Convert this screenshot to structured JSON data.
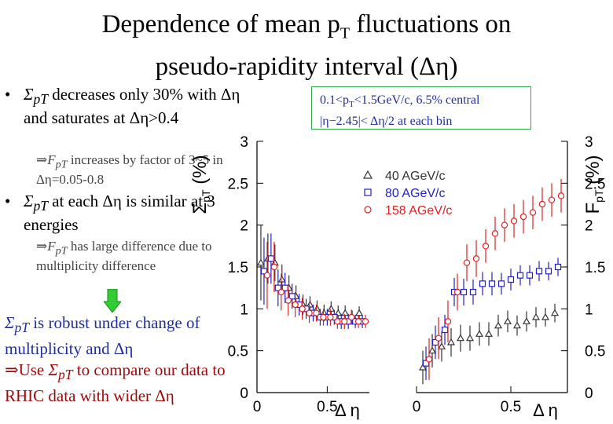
{
  "title": {
    "line1_prefix": "Dependence of mean p",
    "line1_sub": "T",
    "line1_suffix": " fluctuations on",
    "line2": "pseudo-rapidity interval (Δη)"
  },
  "bullets": {
    "dot": "•",
    "b1_sigma": "Σ",
    "b1_sub": "pT",
    "b1_text": " decreases only 30% with Δη and saturates at Δη>0.4",
    "sub1_prefix": "⇒",
    "sub1_F": "F",
    "sub1_sub": "pT",
    "sub1_text": " increases by factor of 3~5 in Δη=0.05-0.8",
    "b2_sigma": "Σ",
    "b2_sub": "pT",
    "b2_text": " at each Δη is similar at 3 energies",
    "sub2_prefix": "⇒",
    "sub2_F": "F",
    "sub2_sub": "pT",
    "sub2_text": " has large difference due to multiplicity difference"
  },
  "footer": {
    "sigma": "Σ",
    "sigma_sub": "pT",
    "line1": " is robust under change of multiplicity and Δη",
    "use_prefix": "⇒Use ",
    "use_sigma": "Σ",
    "use_sub": "pT",
    "use_text": " to compare our data to RHIC data with wider Δη"
  },
  "infobox": {
    "line1_prefix": "0.1<p",
    "line1_sub": "T",
    "line1_suffix": "<1.5GeV/c, 6.5% central",
    "line2": "|η−2.45|< Δη/2 at each bin"
  },
  "colors": {
    "series_40": "#333333",
    "series_80": "#2222cc",
    "series_158": "#dd2222",
    "infobox_border": "#2ea84a",
    "arrow": "#33cc33"
  },
  "chart_data": [
    {
      "type": "scatter",
      "panel": "left",
      "ylabel": "Σ",
      "ylabel_sub": "pT",
      "ylabel_unit": "(%)",
      "xlabel": "Δ η",
      "xlim": [
        0,
        0.8
      ],
      "ylim": [
        0,
        3
      ],
      "xticks": [
        "0",
        "0.5"
      ],
      "yticks": [
        "0",
        "0.5",
        "1",
        "1.5",
        "2",
        "2.5",
        "3"
      ],
      "legend_position": "top-right",
      "series": [
        {
          "name": "40 AGeV/c",
          "marker": "triangle",
          "x": [
            0.05,
            0.1,
            0.15,
            0.2,
            0.25,
            0.3,
            0.35,
            0.4,
            0.45,
            0.5,
            0.55,
            0.6,
            0.65,
            0.7,
            0.75
          ],
          "y": [
            1.55,
            1.6,
            1.55,
            1.35,
            1.25,
            1.15,
            1.05,
            1.05,
            1.0,
            0.95,
            1.0,
            0.95,
            0.95,
            0.9,
            0.95
          ],
          "err": [
            0.45,
            0.3,
            0.22,
            0.18,
            0.15,
            0.13,
            0.12,
            0.1,
            0.1,
            0.1,
            0.09,
            0.09,
            0.09,
            0.08,
            0.08
          ]
        },
        {
          "name": "80 AGeV/c",
          "marker": "square",
          "x": [
            0.05,
            0.1,
            0.15,
            0.2,
            0.25,
            0.3,
            0.35,
            0.4,
            0.45,
            0.5,
            0.55,
            0.6,
            0.65,
            0.7,
            0.75
          ],
          "y": [
            1.45,
            1.6,
            1.25,
            1.25,
            1.15,
            1.05,
            1.0,
            0.95,
            0.9,
            0.9,
            0.9,
            0.85,
            0.85,
            0.85,
            0.85
          ],
          "err": [
            0.4,
            0.3,
            0.22,
            0.18,
            0.15,
            0.13,
            0.12,
            0.1,
            0.1,
            0.1,
            0.09,
            0.09,
            0.09,
            0.08,
            0.08
          ]
        },
        {
          "name": "158 AGeV/c",
          "marker": "circle",
          "x": [
            0.05,
            0.1,
            0.15,
            0.2,
            0.25,
            0.3,
            0.35,
            0.4,
            0.45,
            0.5,
            0.55,
            0.6,
            0.65,
            0.7,
            0.75
          ],
          "y": [
            1.4,
            1.5,
            1.2,
            1.1,
            1.05,
            1.0,
            0.95,
            0.95,
            0.9,
            0.9,
            0.85,
            0.85,
            0.9,
            0.85,
            0.85
          ],
          "err": [
            0.4,
            0.3,
            0.22,
            0.18,
            0.15,
            0.13,
            0.12,
            0.1,
            0.1,
            0.1,
            0.09,
            0.09,
            0.09,
            0.08,
            0.08
          ]
        }
      ]
    },
    {
      "type": "scatter",
      "panel": "right",
      "ylabel": "F",
      "ylabel_sub": "pT",
      "ylabel_unit": "(%)",
      "xlabel": "Δ η",
      "xlim": [
        0,
        0.8
      ],
      "ylim": [
        0,
        3
      ],
      "xticks": [
        "0",
        "0.5"
      ],
      "yticks": [
        "0",
        "0.5",
        "1",
        "1.5",
        "2",
        "2.5",
        "3"
      ],
      "series": [
        {
          "name": "40 AGeV/c",
          "marker": "triangle",
          "x": [
            0.05,
            0.1,
            0.15,
            0.2,
            0.25,
            0.3,
            0.35,
            0.4,
            0.45,
            0.5,
            0.55,
            0.6,
            0.65,
            0.7,
            0.75
          ],
          "y": [
            0.3,
            0.5,
            0.55,
            0.6,
            0.65,
            0.65,
            0.7,
            0.7,
            0.8,
            0.85,
            0.8,
            0.85,
            0.9,
            0.9,
            0.95
          ],
          "err": [
            0.2,
            0.2,
            0.18,
            0.17,
            0.16,
            0.15,
            0.14,
            0.14,
            0.13,
            0.13,
            0.12,
            0.12,
            0.12,
            0.11,
            0.11
          ]
        },
        {
          "name": "80 AGeV/c",
          "marker": "square",
          "x": [
            0.05,
            0.1,
            0.15,
            0.2,
            0.25,
            0.3,
            0.35,
            0.4,
            0.45,
            0.5,
            0.55,
            0.6,
            0.65,
            0.7,
            0.75
          ],
          "y": [
            0.35,
            0.6,
            0.75,
            1.2,
            1.2,
            1.2,
            1.3,
            1.3,
            1.3,
            1.35,
            1.4,
            1.4,
            1.45,
            1.45,
            1.5
          ],
          "err": [
            0.2,
            0.2,
            0.18,
            0.17,
            0.16,
            0.15,
            0.14,
            0.14,
            0.13,
            0.13,
            0.12,
            0.12,
            0.12,
            0.11,
            0.11
          ]
        },
        {
          "name": "158 AGeV/c",
          "marker": "circle",
          "x": [
            0.05,
            0.1,
            0.15,
            0.2,
            0.25,
            0.3,
            0.35,
            0.4,
            0.45,
            0.5,
            0.55,
            0.6,
            0.65,
            0.7,
            0.75
          ],
          "y": [
            0.4,
            0.65,
            0.85,
            1.2,
            1.55,
            1.6,
            1.75,
            1.9,
            2.0,
            2.05,
            2.1,
            2.15,
            2.25,
            2.3,
            2.35
          ],
          "err": [
            0.25,
            0.25,
            0.25,
            0.22,
            0.22,
            0.22,
            0.2,
            0.2,
            0.2,
            0.2,
            0.2,
            0.2,
            0.2,
            0.2,
            0.2
          ]
        }
      ]
    }
  ]
}
